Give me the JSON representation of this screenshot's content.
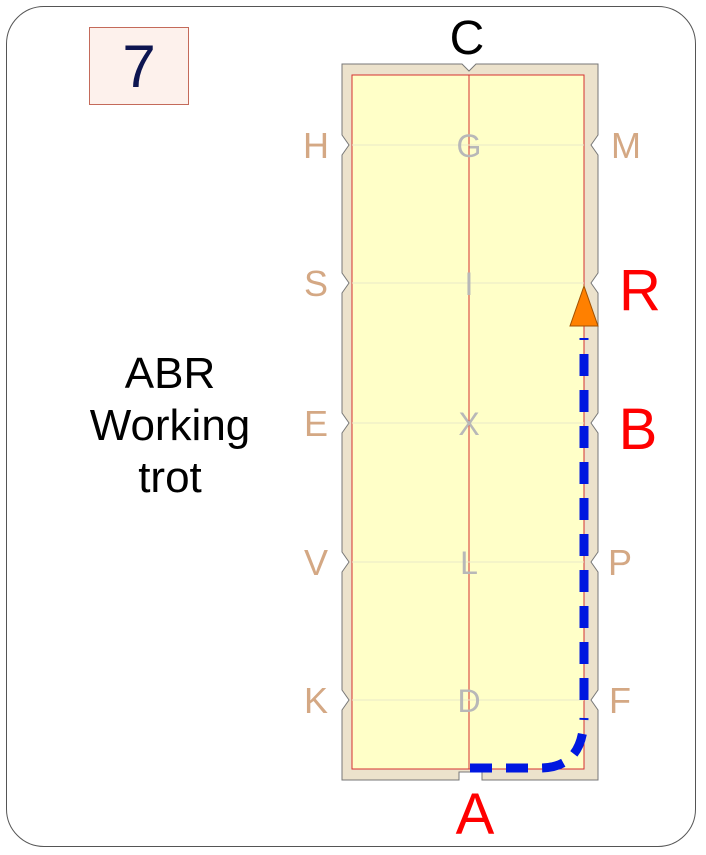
{
  "movement_number": "7",
  "description": [
    "ABR",
    "Working",
    "trot"
  ],
  "letters": {
    "C": "C",
    "A": "A",
    "H": "H",
    "S": "S",
    "E": "E",
    "V": "V",
    "K": "K",
    "M": "M",
    "R": "R",
    "B": "B",
    "P": "P",
    "F": "F",
    "G": "G",
    "I": "I",
    "X": "X",
    "L": "L",
    "D": "D"
  },
  "colors": {
    "path": "#0018e0",
    "arrow": "#ff8000",
    "highlight_letter": "#ff0000",
    "marker_letter": "#d4a884",
    "centre_letter": "#b8b8b8",
    "arena_fill": "#ffffc8",
    "arena_border": "#ece2cc"
  }
}
